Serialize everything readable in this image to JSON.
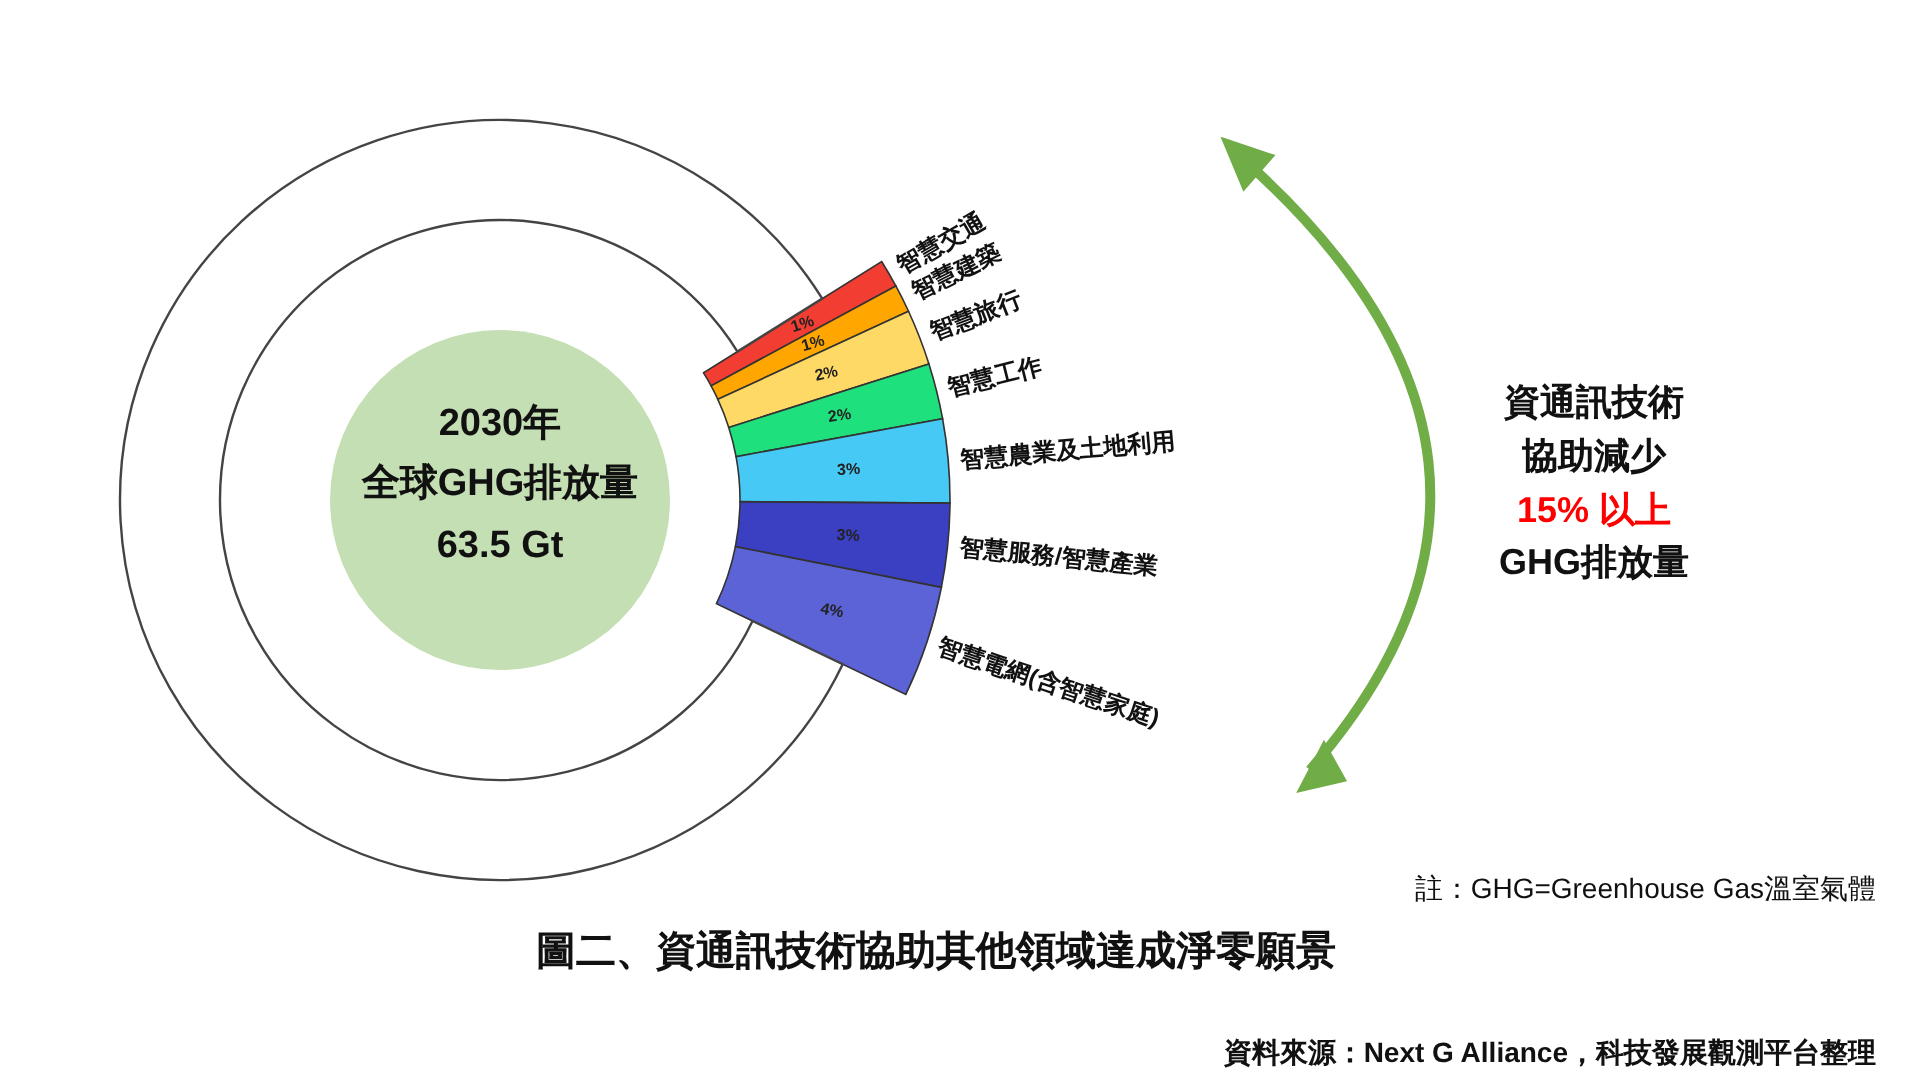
{
  "chart_data": {
    "type": "donut",
    "title": "圖二、資通訊技術協助其他領域達成淨零願景",
    "categories": [
      "智慧交通",
      "智慧建築",
      "智慧旅行",
      "智慧工作",
      "智慧農業及土地利用",
      "智慧服務/智慧產業",
      "智慧電網(含智慧家庭)",
      null
    ],
    "values": [
      1,
      1,
      2,
      2,
      3,
      3,
      4,
      84
    ],
    "value_labels": [
      "1%",
      "1%",
      "2%",
      "2%",
      "3%",
      "3%",
      "4%",
      null
    ],
    "colors": [
      "#f23d33",
      "#ffa600",
      "#ffd966",
      "#1ee07d",
      "#47c9f5",
      "#3b3fc2",
      "#5b63d6",
      "#ffffff"
    ],
    "annotations": [
      "2030年",
      "全球GHG排放量",
      "63.5 Gt",
      "資通訊技術",
      "協助減少",
      "15% 以上",
      "GHG排放量",
      "註：GHG=Greenhouse Gas溫室氣體",
      "資料來源：Next G Alliance，科技發展觀測平台整理"
    ]
  }
}
